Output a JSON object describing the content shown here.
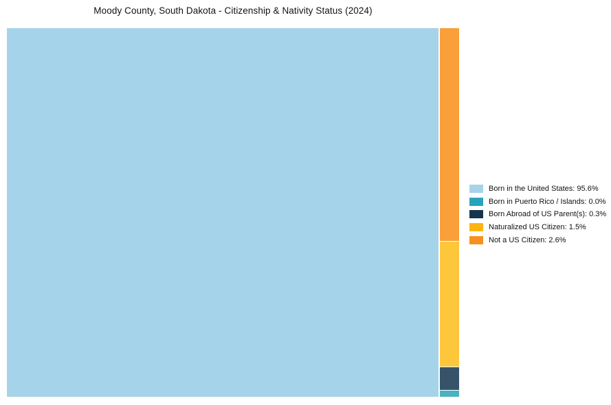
{
  "title": "Moody County, South Dakota - Citizenship & Nativity Status (2024)",
  "chart_data": {
    "type": "treemap",
    "title": "Moody County, South Dakota - Citizenship & Nativity Status (2024)",
    "unit": "percent",
    "legend_position": "right-center",
    "categories": [
      "Born in the United States",
      "Born in Puerto Rico / Islands",
      "Born Abroad of US Parent(s)",
      "Naturalized US Citizen",
      "Not a US Citizen"
    ],
    "values": [
      95.6,
      0.0,
      0.3,
      1.5,
      2.6
    ],
    "segments": [
      {
        "label": "Born in the United States",
        "value": 95.6,
        "legend_label": "Born in the United States: 95.6%",
        "tile_color": "#a5d3e9",
        "legend_color": "#a6d3ea"
      },
      {
        "label": "Born in Puerto Rico / Islands",
        "value": 0.0,
        "legend_label": "Born in Puerto Rico / Islands: 0.0%",
        "tile_color": "#4bb1c3",
        "legend_color": "#29a3bb"
      },
      {
        "label": "Born Abroad of US Parent(s)",
        "value": 0.3,
        "legend_label": "Born Abroad of US Parent(s): 0.3%",
        "tile_color": "#36536a",
        "legend_color": "#17344e"
      },
      {
        "label": "Naturalized US Citizen",
        "value": 1.5,
        "legend_label": "Naturalized US Citizen: 1.5%",
        "tile_color": "#fec63a",
        "legend_color": "#fdb513"
      },
      {
        "label": "Not a US Citizen",
        "value": 2.6,
        "legend_label": "Not a US Citizen: 2.6%",
        "tile_color": "#f9a03a",
        "legend_color": "#f7911e"
      }
    ]
  }
}
